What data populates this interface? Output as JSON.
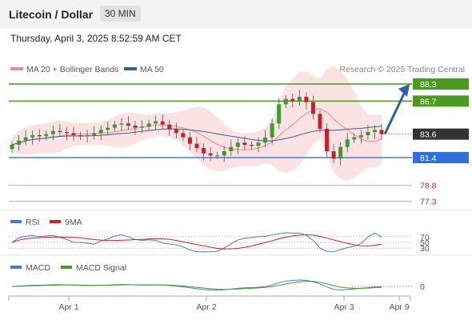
{
  "header": {
    "title": "Litecoin / Dollar",
    "timeframe": "30 MIN"
  },
  "datetime": "Thursday, April 3, 2025 8:52:59 AM CET",
  "legend": {
    "ma20_label": "MA 20 + Bollinger Bands",
    "ma50_label": "MA 50",
    "credit": "Research © 2025 Trading Central",
    "ma20_color": "#f08a8a",
    "ma50_color": "#3b5b9a"
  },
  "levels": [
    {
      "label": "88.3",
      "value": 88.3,
      "style": "green"
    },
    {
      "label": "86.7",
      "value": 86.7,
      "style": "green"
    },
    {
      "label": "83.6",
      "value": 83.6,
      "style": "current"
    },
    {
      "label": "81.4",
      "value": 81.4,
      "style": "blue"
    },
    {
      "label": "78.8",
      "value": 78.8,
      "style": "red"
    },
    {
      "label": "77.3",
      "value": 77.3,
      "style": "red"
    }
  ],
  "rsi": {
    "rsi_label": "RSI",
    "ma_label": "9MA",
    "rsi_color": "#4a7bd6",
    "ma_color": "#d42020",
    "levels": [
      "70",
      "50",
      "30"
    ]
  },
  "macd": {
    "macd_label": "MACD",
    "signal_label": "MACD Signal",
    "macd_color": "#4a7bd6",
    "signal_color": "#4a9a1e",
    "zero_label": "0"
  },
  "xaxis": {
    "labels": [
      "Apr 1",
      "Apr 2",
      "Apr 3",
      "Apr 9"
    ]
  },
  "chart_data": {
    "type": "line",
    "title": "Litecoin / Dollar",
    "timeframe": "30 MIN",
    "x_ticks": [
      "Apr 1",
      "Apr 2",
      "Apr 3",
      "Apr 9"
    ],
    "price_range": [
      76.5,
      89.5
    ],
    "resistance_levels": [
      88.3,
      86.7
    ],
    "current_price": 83.6,
    "support_levels": [
      81.4,
      78.8,
      77.3
    ],
    "forecast_target": 88.3,
    "close_approx": [
      82.6,
      83.0,
      83.3,
      83.5,
      83.4,
      83.6,
      83.9,
      83.8,
      83.7,
      83.5,
      83.4,
      83.5,
      83.7,
      84.0,
      84.2,
      84.5,
      84.6,
      84.4,
      84.2,
      84.3,
      84.6,
      84.8,
      84.5,
      84.1,
      83.7,
      83.3,
      82.7,
      82.3,
      81.8,
      81.6,
      81.6,
      82.0,
      82.4,
      82.8,
      82.6,
      82.5,
      82.8,
      83.3,
      84.6,
      86.4,
      86.9,
      86.7,
      87.1,
      86.6,
      85.5,
      84.1,
      82.0,
      81.3,
      82.4,
      83.1,
      83.3,
      83.5,
      83.8,
      84.0,
      83.6
    ],
    "rsi_range": [
      0,
      100
    ],
    "rsi_levels": [
      70,
      50,
      30
    ],
    "macd_zero": 0
  }
}
